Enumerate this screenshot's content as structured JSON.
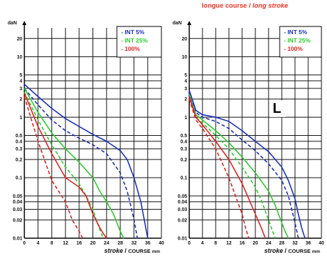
{
  "page_title": {
    "fr": "longue course",
    "sep": " / ",
    "en": "long stroke"
  },
  "colors": {
    "blue": "#1a2fbf",
    "green": "#2bcc2b",
    "red": "#e02222",
    "grid": "#111111"
  },
  "chart_data": [
    {
      "type": "line",
      "title": "",
      "ylabel": "daN",
      "xlabel_en": "stroke",
      "xlabel_sep": " / ",
      "xlabel_fr": "COURSE",
      "xlabel_unit": "mm",
      "x_ticks": [
        "0",
        "4",
        "8",
        "12",
        "16",
        "20",
        "24",
        "28",
        "32",
        "36",
        "40"
      ],
      "y_ticks": [
        "0.01",
        "0.02",
        "0.03",
        "0.04",
        "0.05",
        "0.1",
        "0.2",
        "0.3",
        "0.4",
        "0.5",
        "1",
        "2",
        "3",
        "4",
        "5",
        "10",
        "20"
      ],
      "y_scale": "log",
      "ylim": [
        0.01,
        30
      ],
      "xlim": [
        0,
        40
      ],
      "grid": true,
      "legend_position": "top-right",
      "legend": [
        "- INT 5%",
        "- INT 25%",
        "- 100%"
      ],
      "corner_mark": "",
      "series": [
        {
          "name": "INT 5%",
          "color": "blue",
          "style": "solid",
          "x": [
            0,
            4,
            8,
            12,
            16,
            20,
            24,
            28,
            30,
            32,
            34,
            35,
            36
          ],
          "y": [
            3.5,
            2.2,
            1.4,
            0.95,
            0.7,
            0.52,
            0.4,
            0.28,
            0.2,
            0.1,
            0.04,
            0.02,
            0.01
          ]
        },
        {
          "name": "INT 5%",
          "color": "blue",
          "style": "dashed",
          "x": [
            0,
            4,
            8,
            12,
            16,
            20,
            24,
            28,
            30,
            31,
            32,
            33
          ],
          "y": [
            3.0,
            1.6,
            0.9,
            0.6,
            0.45,
            0.35,
            0.25,
            0.12,
            0.06,
            0.035,
            0.02,
            0.01
          ]
        },
        {
          "name": "INT 25%",
          "color": "green",
          "style": "solid",
          "x": [
            0,
            4,
            8,
            12,
            16,
            20,
            22,
            24,
            26,
            27,
            28,
            29
          ],
          "y": [
            3.0,
            1.2,
            0.55,
            0.3,
            0.18,
            0.1,
            0.06,
            0.04,
            0.025,
            0.018,
            0.013,
            0.01
          ]
        },
        {
          "name": "INT 25%",
          "color": "green",
          "style": "dashed",
          "x": [
            0,
            4,
            8,
            12,
            16,
            18,
            20,
            21,
            22,
            23
          ],
          "y": [
            2.6,
            0.9,
            0.35,
            0.15,
            0.08,
            0.05,
            0.03,
            0.02,
            0.014,
            0.01
          ]
        },
        {
          "name": "100%",
          "color": "red",
          "style": "solid",
          "x": [
            0,
            4,
            8,
            12,
            16,
            18,
            20,
            22,
            23,
            24
          ],
          "y": [
            2.5,
            0.7,
            0.25,
            0.1,
            0.07,
            0.05,
            0.025,
            0.015,
            0.012,
            0.01
          ]
        },
        {
          "name": "100%",
          "color": "red",
          "style": "dashed",
          "x": [
            0,
            4,
            8,
            12,
            14,
            16,
            17
          ],
          "y": [
            2.2,
            0.4,
            0.09,
            0.04,
            0.02,
            0.013,
            0.01
          ]
        }
      ]
    },
    {
      "type": "line",
      "title": "",
      "ylabel": "daN",
      "xlabel_en": "stroke",
      "xlabel_sep": " / ",
      "xlabel_fr": "COURSE",
      "xlabel_unit": "mm",
      "x_ticks": [
        "0",
        "4",
        "8",
        "12",
        "16",
        "20",
        "24",
        "28",
        "32",
        "36",
        "40"
      ],
      "y_ticks": [
        "0.01",
        "0.02",
        "0.03",
        "0.04",
        "0.05",
        "0.1",
        "0.2",
        "0.3",
        "0.4",
        "0.5",
        "1",
        "2",
        "3",
        "4",
        "5",
        "10",
        "20"
      ],
      "y_scale": "log",
      "ylim": [
        0.01,
        30
      ],
      "xlim": [
        0,
        40
      ],
      "grid": true,
      "legend_position": "top-right",
      "legend": [
        "- INT 5%",
        "- INT 25%",
        "- 100%"
      ],
      "corner_mark": "L",
      "series": [
        {
          "name": "INT 5%",
          "color": "blue",
          "style": "solid",
          "x": [
            0,
            2,
            4,
            8,
            12,
            16,
            20,
            24,
            28,
            30,
            32,
            33,
            34,
            35
          ],
          "y": [
            2.8,
            1.3,
            1.1,
            1.0,
            0.85,
            0.6,
            0.4,
            0.27,
            0.15,
            0.09,
            0.045,
            0.025,
            0.015,
            0.01
          ]
        },
        {
          "name": "INT 5%",
          "color": "blue",
          "style": "dashed",
          "x": [
            0,
            2,
            4,
            8,
            12,
            16,
            20,
            24,
            28,
            30,
            31,
            32,
            33
          ],
          "y": [
            2.6,
            1.2,
            1.0,
            0.85,
            0.65,
            0.42,
            0.28,
            0.17,
            0.09,
            0.05,
            0.03,
            0.018,
            0.01
          ]
        },
        {
          "name": "INT 25%",
          "color": "green",
          "style": "solid",
          "x": [
            0,
            2,
            4,
            8,
            12,
            16,
            20,
            24,
            26,
            28,
            29,
            30
          ],
          "y": [
            2.4,
            1.1,
            0.9,
            0.6,
            0.38,
            0.22,
            0.12,
            0.06,
            0.035,
            0.018,
            0.013,
            0.01
          ]
        },
        {
          "name": "INT 25%",
          "color": "green",
          "style": "dashed",
          "x": [
            0,
            2,
            4,
            8,
            12,
            16,
            20,
            22,
            24,
            25,
            26
          ],
          "y": [
            2.2,
            1.0,
            0.8,
            0.5,
            0.3,
            0.15,
            0.07,
            0.04,
            0.02,
            0.014,
            0.01
          ]
        },
        {
          "name": "100%",
          "color": "red",
          "style": "solid",
          "x": [
            0,
            2,
            4,
            8,
            12,
            16,
            18,
            20,
            22,
            23
          ],
          "y": [
            2.2,
            1.0,
            0.75,
            0.4,
            0.2,
            0.08,
            0.045,
            0.025,
            0.014,
            0.01
          ]
        },
        {
          "name": "100%",
          "color": "red",
          "style": "dashed",
          "x": [
            0,
            2,
            4,
            8,
            12,
            14,
            16,
            17,
            18
          ],
          "y": [
            2.0,
            0.9,
            0.65,
            0.3,
            0.1,
            0.05,
            0.025,
            0.015,
            0.01
          ]
        }
      ]
    }
  ]
}
